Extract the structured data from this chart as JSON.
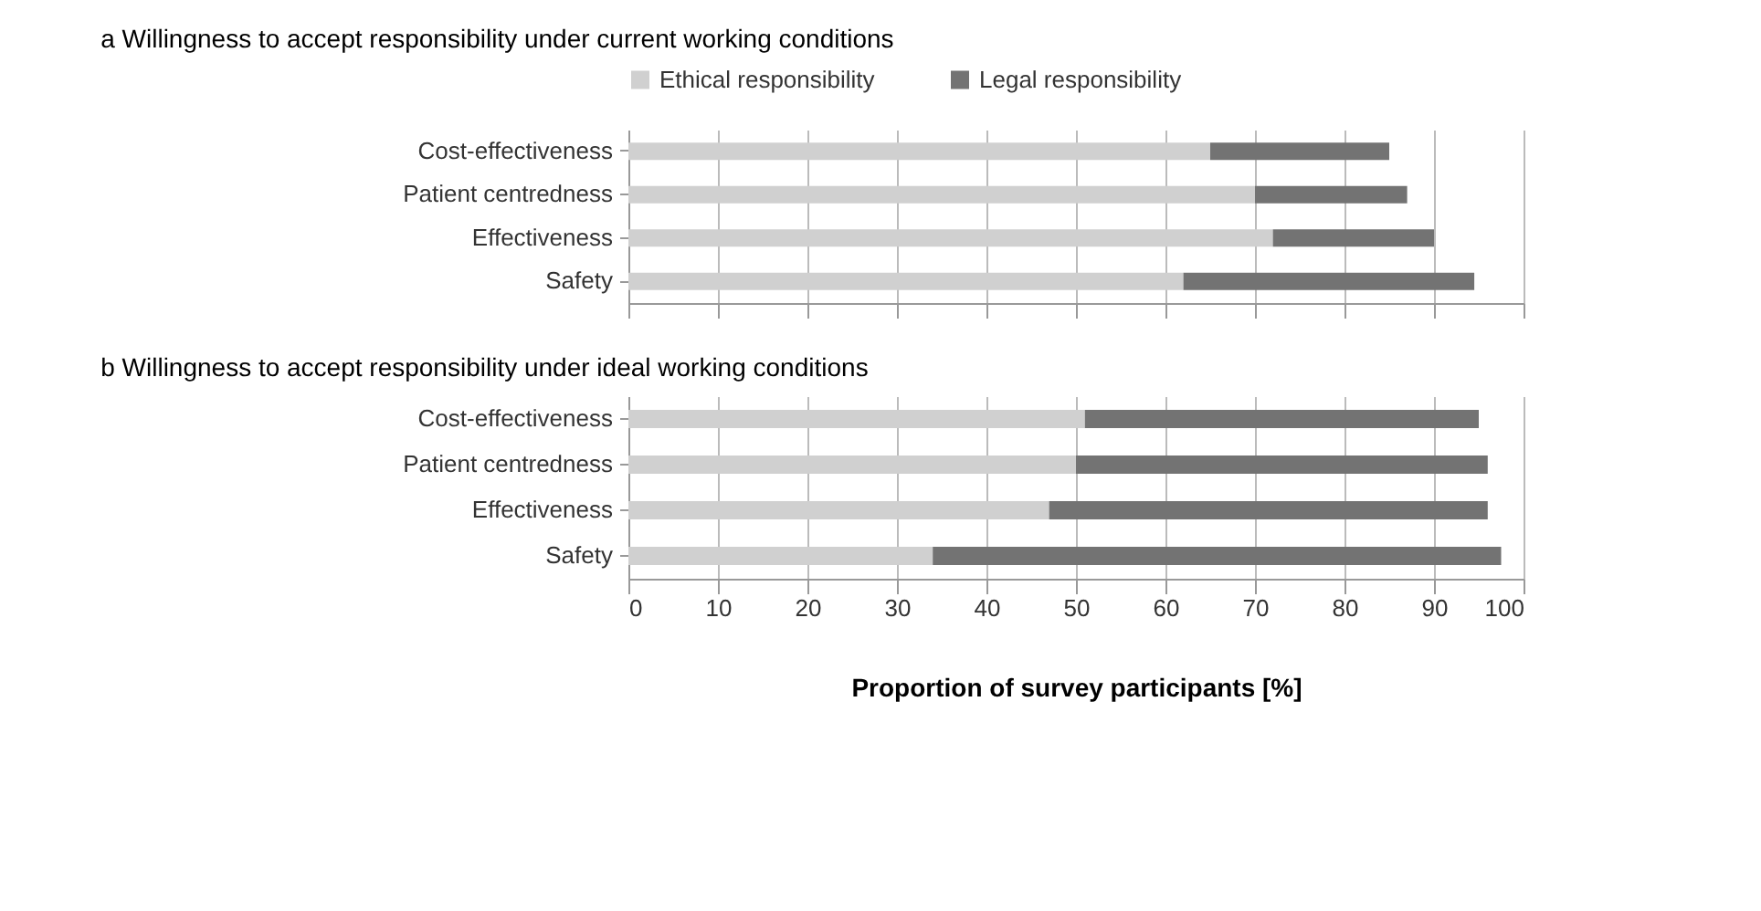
{
  "chart_data": [
    {
      "type": "bar",
      "orientation": "horizontal",
      "stacked": true,
      "title": "a  Willingness to accept responsibility under current working conditions",
      "categories": [
        "Cost-effectiveness",
        "Patient centredness",
        "Effectiveness",
        "Safety"
      ],
      "series": [
        {
          "name": "Ethical responsibility",
          "color": "#d0d0d0",
          "values": [
            65,
            70,
            72,
            62
          ]
        },
        {
          "name": "Legal responsibility",
          "color": "#737373",
          "values": [
            20,
            17,
            18,
            32.5
          ]
        }
      ],
      "xlim": [
        0,
        100
      ],
      "xticks": [
        0,
        10,
        20,
        30,
        40,
        50,
        60,
        70,
        80,
        90,
        100
      ],
      "grid": "x",
      "legend": "top",
      "tick_labels": "y"
    },
    {
      "type": "bar",
      "orientation": "horizontal",
      "stacked": true,
      "title": "b  Willingness to accept responsibility under ideal working conditions",
      "xlabel": "Proportion of survey participants [%]",
      "categories": [
        "Cost-effectiveness",
        "Patient centredness",
        "Effectiveness",
        "Safety"
      ],
      "series": [
        {
          "color": "#d0d0d0",
          "values": [
            51,
            50,
            47,
            34
          ]
        },
        {
          "color": "#737373",
          "values": [
            44,
            46,
            49,
            63.5
          ]
        }
      ],
      "xlim": [
        0,
        100
      ],
      "xticks": [
        0,
        10,
        20,
        30,
        40,
        50,
        60,
        70,
        80,
        90,
        100
      ],
      "grid": "x"
    }
  ]
}
